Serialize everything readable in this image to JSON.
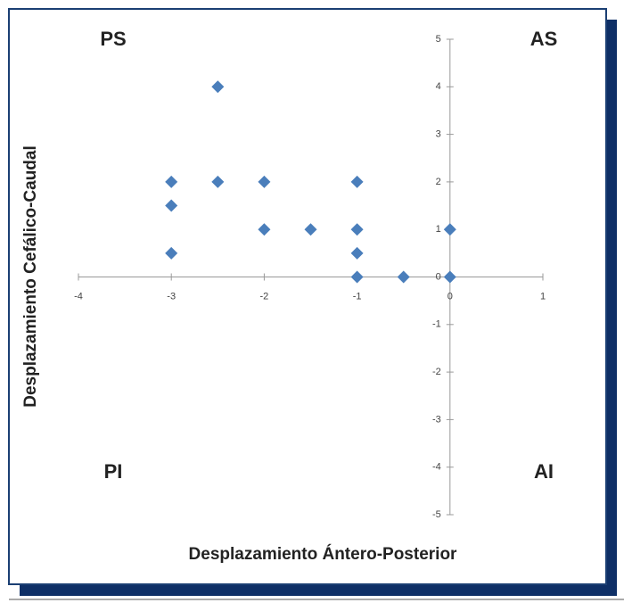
{
  "chart_data": {
    "type": "scatter",
    "x": [
      -2.5,
      -3,
      -2.5,
      -2,
      -1,
      -3,
      -2,
      -1.5,
      -1,
      0,
      -3,
      -1,
      -1,
      -0.5,
      0
    ],
    "values": [
      4,
      2,
      2,
      2,
      2,
      1.5,
      1,
      1,
      1,
      1,
      0.5,
      0.5,
      0,
      0,
      0
    ],
    "color": "#4a7ebb",
    "xlim": [
      -4,
      1
    ],
    "ylim": [
      -5,
      5
    ],
    "xticks": [
      -4,
      -3,
      -2,
      -1,
      0,
      1
    ],
    "yticks": [
      -5,
      -4,
      -3,
      -2,
      -1,
      0,
      1,
      2,
      3,
      4,
      5
    ],
    "xlabel": "Desplazamiento Ántero-Posterior",
    "ylabel": "Desplazamiento Cefálico-Caudal",
    "quadrant_labels": [
      "PS",
      "AS",
      "PI",
      "AI"
    ],
    "grid": false
  }
}
